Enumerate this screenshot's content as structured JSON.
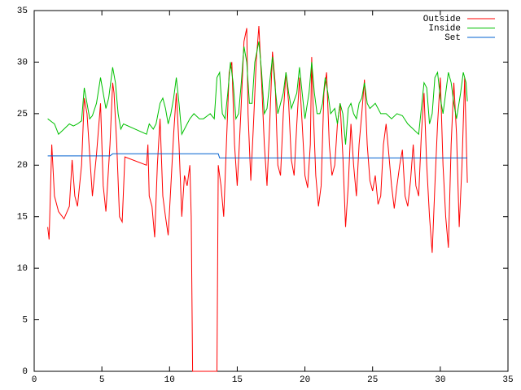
{
  "chart_data": {
    "type": "line",
    "xlim": [
      0,
      35
    ],
    "ylim": [
      0,
      35
    ],
    "xticks": [
      0,
      5,
      10,
      15,
      20,
      25,
      30,
      35
    ],
    "yticks": [
      0,
      5,
      10,
      15,
      20,
      25,
      30,
      35
    ],
    "legend": "upper right",
    "series": [
      {
        "name": "Outside",
        "color": "#ff0000",
        "x": [
          1,
          1.1,
          1.3,
          1.5,
          1.8,
          2.2,
          2.6,
          2.8,
          3.0,
          3.2,
          3.5,
          3.7,
          3.9,
          4.1,
          4.3,
          4.6,
          4.9,
          5.1,
          5.3,
          5.6,
          5.8,
          5.9,
          6.1,
          6.3,
          6.5,
          6.7,
          8.3,
          8.4,
          8.5,
          8.7,
          8.9,
          9.1,
          9.3,
          9.5,
          9.7,
          9.9,
          10.1,
          10.3,
          10.5,
          10.7,
          10.9,
          11.1,
          11.3,
          11.5,
          11.6,
          11.7,
          13.5,
          13.6,
          13.8,
          14.0,
          14.2,
          14.4,
          14.6,
          14.8,
          15.0,
          15.1,
          15.3,
          15.5,
          15.7,
          15.8,
          16.0,
          16.2,
          16.4,
          16.6,
          16.8,
          17.0,
          17.2,
          17.4,
          17.6,
          17.8,
          18.0,
          18.2,
          18.4,
          18.6,
          18.8,
          19.0,
          19.2,
          19.4,
          19.6,
          19.8,
          20.0,
          20.2,
          20.4,
          20.5,
          20.6,
          20.8,
          21.0,
          21.2,
          21.4,
          21.6,
          21.8,
          22.0,
          22.2,
          22.4,
          22.6,
          22.8,
          23.0,
          23.2,
          23.4,
          23.6,
          23.8,
          24.0,
          24.2,
          24.4,
          24.6,
          24.8,
          25.0,
          25.2,
          25.4,
          25.6,
          25.8,
          26.0,
          26.2,
          26.4,
          26.6,
          26.8,
          27.0,
          27.2,
          27.4,
          27.6,
          27.8,
          28.0,
          28.2,
          28.4,
          28.6,
          28.8,
          29.0,
          29.2,
          29.4,
          29.6,
          29.8,
          30.0,
          30.2,
          30.4,
          30.6,
          30.8,
          31.0,
          31.2,
          31.4,
          31.6,
          31.8,
          32.0
        ],
        "values": [
          14,
          12.8,
          22,
          17,
          15.5,
          14.8,
          16,
          20.5,
          17,
          16,
          20,
          26.5,
          25,
          21,
          17,
          21,
          26,
          18,
          15.5,
          22,
          28,
          27,
          22,
          15,
          14.5,
          20.8,
          20,
          22,
          17,
          16,
          13,
          20,
          24.5,
          17,
          15,
          13.2,
          18,
          23,
          27,
          22,
          15,
          19,
          18,
          20,
          15,
          0,
          0,
          20,
          18,
          15,
          22,
          29,
          30,
          22,
          18,
          20.5,
          26,
          32,
          33.3,
          25,
          18.5,
          24,
          30,
          33.5,
          28,
          22,
          18,
          24,
          31,
          28,
          20,
          19,
          25,
          29,
          26,
          20.5,
          19,
          24,
          28.5,
          24,
          19,
          17.8,
          22,
          30.5,
          26,
          19,
          16,
          18,
          27,
          29,
          22,
          19,
          20,
          24,
          26,
          21,
          14,
          18,
          24,
          20,
          17,
          22,
          25,
          28.3,
          22,
          18.5,
          17.5,
          19,
          16.2,
          17,
          22,
          24,
          21,
          18,
          15.8,
          18,
          20,
          21.5,
          17,
          16,
          18.5,
          22,
          18,
          17,
          23,
          27,
          20,
          15,
          11.5,
          18,
          24,
          28.5,
          20,
          15,
          12,
          22,
          28,
          23,
          14,
          20,
          28.5,
          18.3
        ]
      },
      {
        "name": "Inside",
        "color": "#00c000",
        "x": [
          1,
          1.3,
          1.5,
          1.8,
          2.2,
          2.6,
          2.9,
          3.2,
          3.5,
          3.7,
          3.9,
          4.1,
          4.3,
          4.6,
          4.9,
          5.1,
          5.3,
          5.5,
          5.8,
          6.0,
          6.2,
          6.4,
          6.6,
          8.3,
          8.5,
          8.8,
          9.0,
          9.3,
          9.5,
          9.7,
          9.9,
          10.1,
          10.3,
          10.5,
          10.7,
          10.9,
          11.1,
          11.3,
          11.5,
          11.8,
          12.2,
          12.5,
          13.0,
          13.3,
          13.5,
          13.7,
          13.9,
          14.1,
          14.3,
          14.5,
          14.7,
          14.9,
          15.1,
          15.3,
          15.5,
          15.7,
          15.9,
          16.1,
          16.3,
          16.6,
          16.8,
          17.0,
          17.2,
          17.4,
          17.6,
          17.8,
          18.0,
          18.4,
          18.6,
          18.8,
          19.0,
          19.4,
          19.6,
          19.8,
          20.0,
          20.3,
          20.5,
          20.7,
          20.9,
          21.1,
          21.3,
          21.5,
          21.7,
          21.9,
          22.2,
          22.4,
          22.6,
          22.8,
          23.0,
          23.2,
          23.4,
          23.6,
          23.8,
          24.0,
          24.2,
          24.4,
          24.6,
          24.8,
          25.2,
          25.6,
          26.0,
          26.4,
          26.8,
          27.2,
          27.6,
          28.0,
          28.4,
          28.8,
          29.0,
          29.2,
          29.4,
          29.6,
          29.8,
          30.0,
          30.2,
          30.4,
          30.6,
          30.8,
          31.0,
          31.2,
          31.5,
          31.7,
          31.9,
          32.0
        ],
        "values": [
          24.5,
          24.2,
          24,
          23,
          23.5,
          24,
          23.8,
          24,
          24.3,
          27.5,
          26,
          24.5,
          24.8,
          26,
          28.5,
          27,
          25.5,
          26.5,
          29.5,
          28,
          25,
          23.5,
          24,
          23,
          24,
          23.5,
          24,
          26,
          26.5,
          25.5,
          24,
          25,
          26.5,
          28.5,
          26,
          23,
          23.5,
          24,
          24.5,
          25,
          24.5,
          24.5,
          25,
          24.5,
          28.5,
          29,
          25,
          24.5,
          27,
          30,
          28,
          24.5,
          25,
          28,
          31.5,
          30,
          26,
          26,
          30,
          32,
          29,
          25,
          25.5,
          28,
          30.5,
          27.5,
          25,
          27,
          29,
          27,
          25.5,
          27,
          29.5,
          27,
          24.5,
          27,
          30,
          27,
          25,
          25,
          26,
          28.5,
          27,
          25,
          25.5,
          24,
          26,
          25,
          22,
          25.5,
          26,
          25,
          24.5,
          26,
          26.5,
          28,
          26,
          25.5,
          26,
          25,
          25,
          24.5,
          25,
          24.8,
          24,
          23.5,
          23,
          28,
          27.5,
          24,
          25,
          28.5,
          29,
          26.5,
          25,
          27,
          29,
          28,
          26,
          24.5,
          27,
          29,
          28,
          26.2
        ]
      },
      {
        "name": "Set",
        "color": "#0060d0",
        "x": [
          1,
          5.6,
          5.8,
          13.6,
          13.7,
          32
        ],
        "values": [
          20.9,
          20.9,
          21.1,
          21.1,
          20.7,
          20.7
        ]
      }
    ]
  }
}
